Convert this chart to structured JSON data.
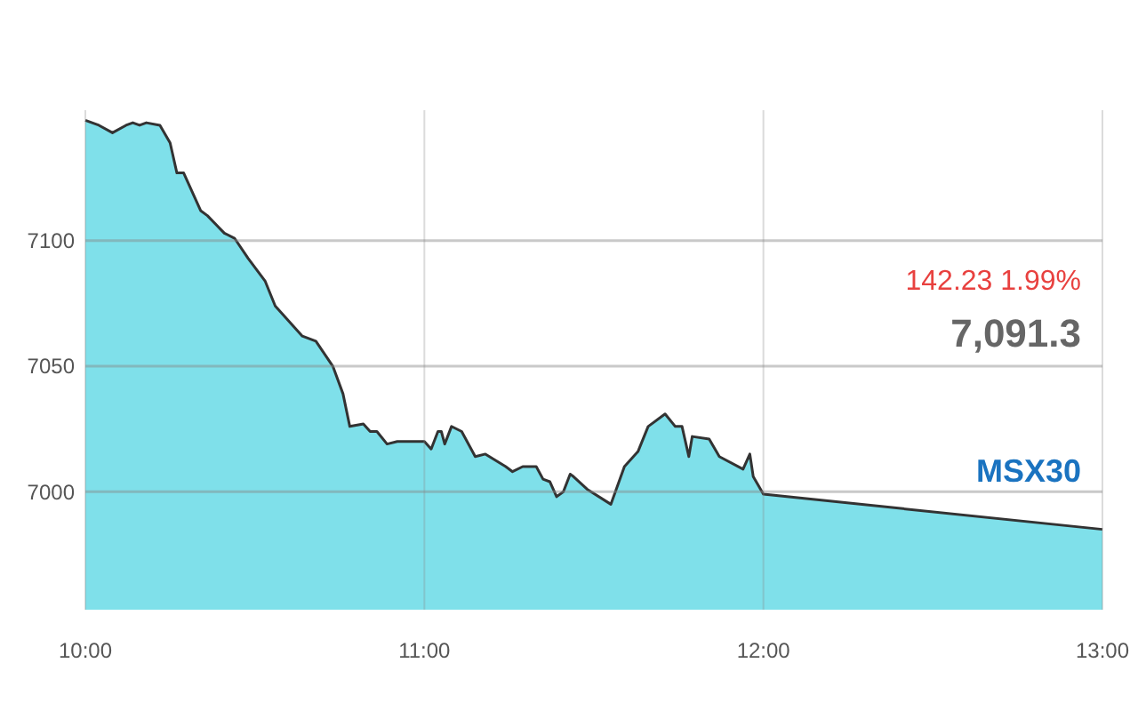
{
  "chart_data": {
    "type": "area",
    "x": [
      10,
      10.04,
      10.08,
      10.12,
      10.14,
      10.16,
      10.18,
      10.22,
      10.25,
      10.27,
      10.29,
      10.34,
      10.36,
      10.41,
      10.44,
      10.48,
      10.53,
      10.56,
      10.64,
      10.68,
      10.73,
      10.76,
      10.78,
      10.82,
      10.84,
      10.86,
      10.89,
      10.92,
      11.0,
      11.02,
      11.04,
      11.05,
      11.06,
      11.08,
      11.11,
      11.15,
      11.18,
      11.24,
      11.26,
      11.29,
      11.33,
      11.35,
      11.37,
      11.39,
      11.41,
      11.43,
      11.44,
      11.48,
      11.55,
      11.59,
      11.63,
      11.66,
      11.71,
      11.74,
      11.76,
      11.78,
      11.79,
      11.84,
      11.87,
      11.94,
      11.96,
      11.97,
      12.0,
      13.0
    ],
    "series": [
      {
        "color": "#7fe0ea",
        "values": [
          7148,
          7146,
          7143,
          7146,
          7147,
          7146,
          7147,
          7146,
          7139,
          7127,
          7127,
          7112,
          7110,
          7103,
          7101,
          7093,
          7084,
          7074,
          7062,
          7060,
          7050,
          7039,
          7026,
          7027,
          7024,
          7024,
          7019,
          7020,
          7020,
          7017,
          7024,
          7024,
          7019,
          7026,
          7024,
          7014,
          7015,
          7010,
          7008,
          7010,
          7010,
          7005,
          7004,
          6998,
          7000,
          7007,
          7006,
          7001,
          6995,
          7010,
          7016,
          7026,
          7031,
          7026,
          7026,
          7014,
          7022,
          7021,
          7014,
          7009,
          7015,
          7006,
          6999,
          6985
        ]
      }
    ],
    "xlim": [
      10,
      13
    ],
    "xticks": [
      {
        "value": 10,
        "label": "10:00"
      },
      {
        "value": 11,
        "label": "11:00"
      },
      {
        "value": 12,
        "label": "12:00"
      },
      {
        "value": 13,
        "label": "13:00"
      }
    ],
    "ylim": [
      6953,
      7152
    ],
    "yticks": [
      7000,
      7050,
      7100
    ],
    "grid": true,
    "annotations": [
      "142.23 1.99%",
      "7,091.3",
      "MSX30"
    ]
  }
}
